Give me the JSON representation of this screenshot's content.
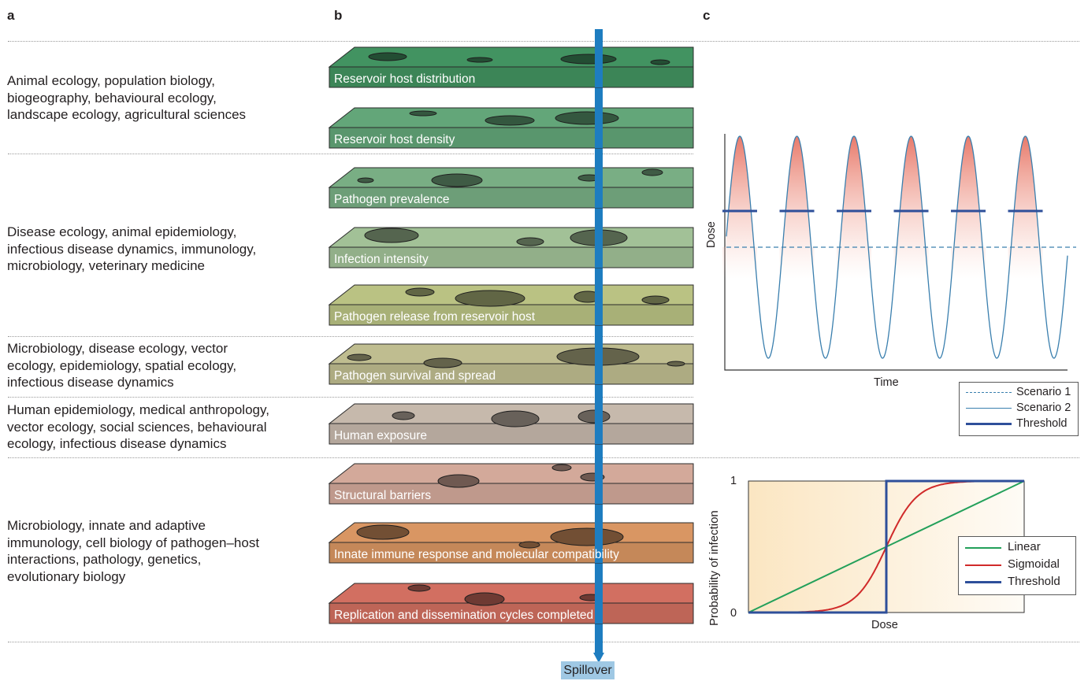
{
  "panel_labels": {
    "a": "a",
    "b": "b",
    "c": "c"
  },
  "fields": [
    {
      "lines": [
        "Animal ecology, population biology,",
        "biogeography, behavioural ecology,",
        "landscape ecology, agricultural sciences"
      ]
    },
    {
      "lines": [
        "Disease ecology, animal epidemiology,",
        "infectious disease dynamics, immunology,",
        "microbiology, veterinary medicine"
      ]
    },
    {
      "lines": [
        "Microbiology, disease ecology, vector",
        "ecology, epidemiology, spatial ecology,",
        "infectious disease dynamics"
      ]
    },
    {
      "lines": [
        "Human epidemiology, medical anthropology,",
        "vector ecology, social sciences, behavioural",
        "ecology, infectious disease dynamics"
      ]
    },
    {
      "lines": [
        "Microbiology, innate and adaptive",
        "immunology, cell biology of pathogen–host",
        "interactions, pathology, genetics,",
        "evolutionary biology"
      ]
    }
  ],
  "barriers": [
    {
      "label": "Reservoir host distribution",
      "color": "#3f8c5c"
    },
    {
      "label": "Reservoir host density",
      "color": "#5e9e73"
    },
    {
      "label": "Pathogen prevalence",
      "color": "#73a67e"
    },
    {
      "label": "Infection intensity",
      "color": "#9ab890"
    },
    {
      "label": "Pathogen release from reservoir host",
      "color": "#b1b97d"
    },
    {
      "label": "Pathogen survival and spread",
      "color": "#b6b489"
    },
    {
      "label": "Human exposure",
      "color": "#bdb0a4"
    },
    {
      "label": "Structural barriers",
      "color": "#c9a193"
    },
    {
      "label": "Innate immune response and molecular compatibility",
      "color": "#cf8f5e"
    },
    {
      "label": "Replication and dissemination cycles completed",
      "color": "#c86a5c"
    }
  ],
  "outcome": {
    "label": "Spillover"
  },
  "colors": {
    "pathway": "#1e7dc0",
    "outcome_bg": "#9fc8e4",
    "scenario": "#3a7fae",
    "threshold": "#2e4f9a",
    "linear": "#23a05a",
    "sigmoidal": "#d02a2a"
  },
  "chart_data": [
    {
      "type": "line",
      "xlabel": "Time",
      "ylabel": "Dose",
      "series": [
        {
          "name": "Scenario 1",
          "style": "dashed",
          "values": [
            0.52
          ]
        },
        {
          "name": "Scenario 2",
          "style": "solid",
          "pattern": "periodic oscillation",
          "peaks": 6
        },
        {
          "name": "Threshold",
          "style": "thick",
          "values": [
            0.72
          ]
        }
      ]
    },
    {
      "type": "line",
      "xlabel": "Dose",
      "ylabel": "Probability of infection",
      "y_ticks": [
        "0",
        "1"
      ],
      "ylim": [
        0,
        1
      ],
      "series": [
        {
          "name": "Linear",
          "shape": "linear"
        },
        {
          "name": "Sigmoidal",
          "shape": "sigmoid"
        },
        {
          "name": "Threshold",
          "shape": "step",
          "step_at": 0.5
        }
      ]
    }
  ]
}
